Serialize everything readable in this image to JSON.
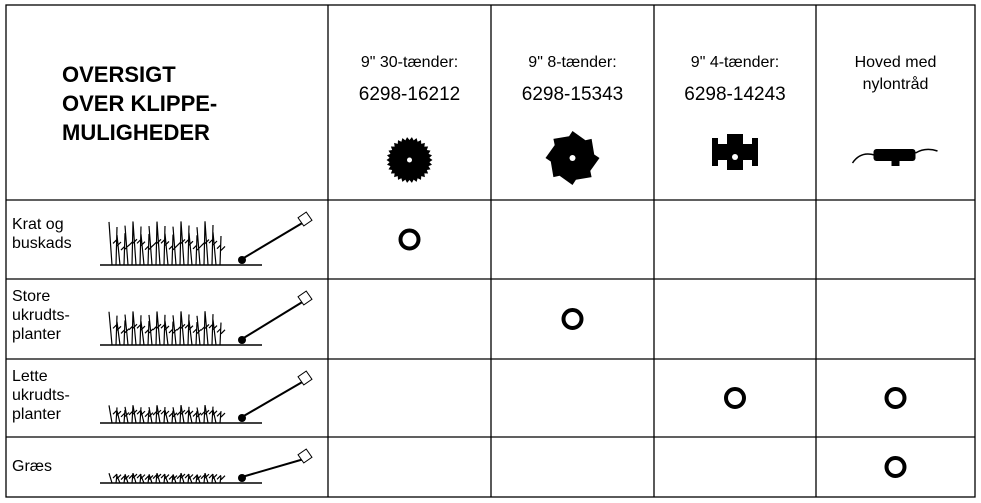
{
  "header": {
    "title": [
      "OVERSIGT",
      "OVER KLIPPE-",
      "MULIGHEDER"
    ],
    "columns": [
      {
        "lines": [
          "9\" 30-tænder:",
          "6298-16212"
        ]
      },
      {
        "lines": [
          "9\" 8-tænder:",
          "6298-15343"
        ]
      },
      {
        "lines": [
          "9\" 4-tænder:",
          "6298-14243"
        ]
      },
      {
        "lines": [
          "Hoved med",
          "nylontråd"
        ]
      }
    ]
  },
  "table": {
    "rows": [
      {
        "label": [
          "Krat og",
          "buskads"
        ],
        "marks": [
          true,
          false,
          false,
          false
        ]
      },
      {
        "label": [
          "Store",
          "ukrudts-",
          "planter"
        ],
        "marks": [
          false,
          true,
          false,
          false
        ]
      },
      {
        "label": [
          "Lette",
          "ukrudts-",
          "planter"
        ],
        "marks": [
          false,
          false,
          true,
          true
        ]
      },
      {
        "label": [
          "Græs"
        ],
        "marks": [
          false,
          false,
          false,
          true
        ]
      }
    ]
  }
}
